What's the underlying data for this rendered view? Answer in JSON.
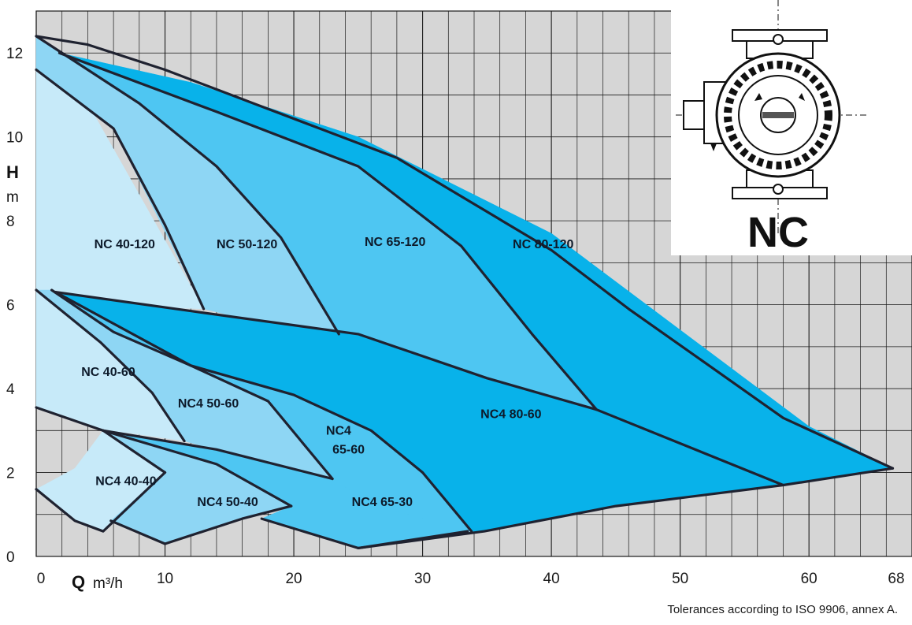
{
  "chart_data": {
    "type": "area",
    "xlabel": "Q",
    "xunit": "m³/h",
    "ylabel": "H",
    "yunit": "m",
    "xlim": [
      0,
      68
    ],
    "ylim": [
      0,
      13
    ],
    "x_ticks": [
      "0",
      "10",
      "20",
      "30",
      "40",
      "50",
      "60",
      "68"
    ],
    "x_tick_values": [
      0,
      10,
      20,
      30,
      40,
      50,
      60,
      68
    ],
    "y_ticks": [
      "0",
      "1",
      "2",
      "3",
      "4",
      "5",
      "6",
      "7",
      "8",
      "9",
      "10",
      "11",
      "12",
      "13"
    ],
    "y_tick_values": [
      0,
      1,
      2,
      3,
      4,
      5,
      6,
      7,
      8,
      9,
      10,
      11,
      12,
      13
    ],
    "y_ticks_faint": [
      1,
      3,
      5,
      7,
      9,
      11,
      13
    ],
    "grid": true,
    "colors": {
      "background": "#d6d6d6",
      "gridline": "#1a1a1a",
      "curve": "#1f2230",
      "light": "#c7eaf9",
      "mid_light": "#8ed6f4",
      "mid": "#4ec6f2",
      "dark": "#08b2ea"
    },
    "series": [
      {
        "name": "NC 40-120",
        "color": "#c7eaf9",
        "points": [
          [
            0,
            12.4
          ],
          [
            1.8,
            12.0
          ],
          [
            13,
            5.9
          ],
          [
            13,
            5.9
          ],
          [
            8,
            5.95
          ],
          [
            0,
            6.35
          ],
          [
            0,
            11.6
          ]
        ]
      },
      {
        "name": "NC 50-120",
        "color": "#8ed6f4",
        "points": [
          [
            1.8,
            12.0
          ],
          [
            8,
            10.8
          ],
          [
            14,
            9.3
          ],
          [
            19,
            7.6
          ],
          [
            23.5,
            5.3
          ],
          [
            23.5,
            5.3
          ],
          [
            17,
            5.6
          ],
          [
            13,
            5.9
          ],
          [
            6,
            10.2
          ],
          [
            0,
            11.6
          ],
          [
            0,
            12.4
          ]
        ]
      },
      {
        "name": "NC 65-120",
        "color": "#4ec6f2",
        "points": [
          [
            1.8,
            12.0
          ],
          [
            14,
            10.6
          ],
          [
            25,
            9.3
          ],
          [
            33,
            7.4
          ],
          [
            38.5,
            5.3
          ],
          [
            43.5,
            3.5
          ],
          [
            35,
            4.25
          ],
          [
            23.5,
            5.3
          ],
          [
            19,
            7.6
          ],
          [
            14,
            9.3
          ],
          [
            8,
            10.8
          ]
        ]
      },
      {
        "name": "NC 80-120",
        "color": "#08b2ea",
        "points": [
          [
            1.8,
            12.0
          ],
          [
            12,
            11.3
          ],
          [
            25,
            10.0
          ],
          [
            40,
            7.7
          ],
          [
            50,
            5.4
          ],
          [
            60,
            3.1
          ],
          [
            66.5,
            2.1
          ],
          [
            58,
            1.7
          ],
          [
            43.5,
            3.5
          ],
          [
            38.5,
            5.3
          ],
          [
            33,
            7.4
          ],
          [
            25,
            9.3
          ],
          [
            14,
            10.6
          ]
        ]
      },
      {
        "name": "NC 40-60",
        "color": "#c7eaf9",
        "points": [
          [
            0,
            6.35
          ],
          [
            5,
            5.1
          ],
          [
            9,
            3.9
          ],
          [
            11.5,
            2.75
          ],
          [
            7,
            2.95
          ],
          [
            5.2,
            3.0
          ],
          [
            0,
            3.55
          ]
        ]
      },
      {
        "name": "NC4 50-60",
        "color": "#8ed6f4",
        "points": [
          [
            1.2,
            6.35
          ],
          [
            6,
            5.35
          ],
          [
            12,
            4.55
          ],
          [
            18,
            3.7
          ],
          [
            23,
            1.85
          ],
          [
            21,
            1.95
          ],
          [
            11.5,
            2.75
          ],
          [
            9,
            3.9
          ],
          [
            5,
            5.1
          ],
          [
            0,
            6.35
          ]
        ]
      },
      {
        "name": "NC4 65-60",
        "color": "#4ec6f2",
        "points": [
          [
            1.5,
            6.3
          ],
          [
            12,
            4.55
          ],
          [
            20,
            3.85
          ],
          [
            26,
            3.0
          ],
          [
            30,
            2.0
          ],
          [
            33.8,
            0.6
          ],
          [
            33.5,
            0.6
          ],
          [
            26,
            1.25
          ],
          [
            23,
            1.85
          ],
          [
            18,
            3.7
          ],
          [
            12,
            4.55
          ],
          [
            6,
            5.35
          ]
        ]
      },
      {
        "name": "NC4 80-60",
        "color": "#08b2ea",
        "points": [
          [
            1.5,
            6.3
          ],
          [
            12,
            5.85
          ],
          [
            25,
            5.3
          ],
          [
            35,
            4.25
          ],
          [
            43.5,
            3.5
          ],
          [
            58,
            1.7
          ],
          [
            45,
            1.2
          ],
          [
            34.8,
            0.6
          ],
          [
            33.8,
            0.6
          ],
          [
            30,
            2.0
          ],
          [
            26,
            3.0
          ],
          [
            20,
            3.85
          ],
          [
            12,
            4.55
          ]
        ]
      },
      {
        "name": "NC4 40-40",
        "color": "#c7eaf9",
        "points": [
          [
            0,
            1.6
          ],
          [
            3,
            0.85
          ],
          [
            5.2,
            0.6
          ],
          [
            10,
            2.0
          ],
          [
            5.2,
            3.0
          ],
          [
            3,
            2.1
          ],
          [
            0,
            1.6
          ]
        ]
      },
      {
        "name": "NC4 50-40",
        "color": "#8ed6f4",
        "points": [
          [
            5.2,
            3.0
          ],
          [
            10,
            2.0
          ],
          [
            5.8,
            0.85
          ],
          [
            10,
            0.3
          ],
          [
            16,
            0.9
          ],
          [
            19.8,
            1.2
          ],
          [
            14,
            2.2
          ]
        ]
      },
      {
        "name": "NC4 65-30",
        "color": "#4ec6f2",
        "points": [
          [
            5.2,
            3.0
          ],
          [
            14,
            2.55
          ],
          [
            23,
            1.85
          ],
          [
            26,
            1.25
          ],
          [
            33.5,
            0.6
          ],
          [
            25,
            0.2
          ],
          [
            17.5,
            0.9
          ],
          [
            19.8,
            1.2
          ],
          [
            14,
            2.2
          ]
        ]
      }
    ],
    "curves": [
      [
        [
          0,
          12.4
        ],
        [
          4,
          12.2
        ],
        [
          10,
          11.6
        ],
        [
          16,
          10.9
        ],
        [
          22,
          10.2
        ],
        [
          28,
          9.5
        ],
        [
          34,
          8.4
        ],
        [
          40,
          7.3
        ],
        [
          46,
          5.9
        ],
        [
          52,
          4.6
        ],
        [
          58,
          3.3
        ],
        [
          66.5,
          2.1
        ]
      ],
      [
        [
          0,
          12.4
        ],
        [
          8,
          10.8
        ],
        [
          14,
          9.3
        ],
        [
          19,
          7.6
        ],
        [
          23.5,
          5.3
        ]
      ],
      [
        [
          0,
          11.6
        ],
        [
          6,
          10.2
        ],
        [
          10,
          7.9
        ],
        [
          13,
          5.9
        ]
      ],
      [
        [
          1.8,
          12.0
        ],
        [
          14,
          10.6
        ],
        [
          25,
          9.3
        ],
        [
          33,
          7.4
        ],
        [
          38.5,
          5.3
        ],
        [
          43.5,
          3.5
        ]
      ],
      [
        [
          1.5,
          6.3
        ],
        [
          12,
          5.85
        ],
        [
          25,
          5.3
        ],
        [
          35,
          4.25
        ],
        [
          43.5,
          3.5
        ],
        [
          58,
          1.7
        ]
      ],
      [
        [
          1.2,
          6.35
        ],
        [
          6,
          5.35
        ],
        [
          12,
          4.55
        ],
        [
          18,
          3.7
        ],
        [
          23,
          1.85
        ]
      ],
      [
        [
          1.5,
          6.3
        ],
        [
          12,
          4.55
        ],
        [
          20,
          3.85
        ],
        [
          26,
          3.0
        ],
        [
          30,
          2.0
        ],
        [
          33.8,
          0.6
        ]
      ],
      [
        [
          0,
          6.35
        ],
        [
          5,
          5.1
        ],
        [
          9,
          3.9
        ],
        [
          11.5,
          2.75
        ]
      ],
      [
        [
          0,
          3.55
        ],
        [
          5.2,
          3.0
        ],
        [
          10,
          2.0
        ]
      ],
      [
        [
          5.2,
          3.0
        ],
        [
          14,
          2.55
        ],
        [
          23,
          1.85
        ]
      ],
      [
        [
          5.2,
          3.0
        ],
        [
          14,
          2.2
        ],
        [
          19.8,
          1.2
        ]
      ],
      [
        [
          0,
          1.6
        ],
        [
          3,
          0.85
        ],
        [
          5.2,
          0.6
        ],
        [
          10,
          2.0
        ]
      ],
      [
        [
          5.8,
          0.85
        ],
        [
          10,
          0.3
        ],
        [
          16,
          0.9
        ],
        [
          19.8,
          1.2
        ]
      ],
      [
        [
          10,
          0.3
        ],
        [
          10,
          0.3
        ]
      ],
      [
        [
          17.5,
          0.9
        ],
        [
          25,
          0.2
        ],
        [
          33.5,
          0.6
        ]
      ],
      [
        [
          25,
          0.2
        ],
        [
          34.8,
          0.6
        ],
        [
          45,
          1.2
        ],
        [
          58,
          1.7
        ],
        [
          66.5,
          2.1
        ]
      ]
    ],
    "region_labels": [
      {
        "text": "NC 40-120",
        "x": 4.5,
        "y": 7.35
      },
      {
        "text": "NC 50-120",
        "x": 14,
        "y": 7.35
      },
      {
        "text": "NC 65-120",
        "x": 25.5,
        "y": 7.4
      },
      {
        "text": "NC 80-120",
        "x": 37,
        "y": 7.35
      },
      {
        "text": "NC 40-60",
        "x": 3.5,
        "y": 4.3
      },
      {
        "text": "NC4 50-60",
        "x": 11,
        "y": 3.55
      },
      {
        "text": "NC4",
        "x": 22.5,
        "y": 2.9
      },
      {
        "text": "65-60",
        "x": 23,
        "y": 2.45
      },
      {
        "text": "NC4 80-60",
        "x": 34.5,
        "y": 3.3
      },
      {
        "text": "NC4 40-40",
        "x": 4.6,
        "y": 1.7
      },
      {
        "text": "NC4 50-40",
        "x": 12.5,
        "y": 1.2
      },
      {
        "text": "NC4 65-30",
        "x": 24.5,
        "y": 1.2
      }
    ]
  },
  "logo_label": "NC",
  "footnote": "Tolerances according to ISO 9906, annex A."
}
